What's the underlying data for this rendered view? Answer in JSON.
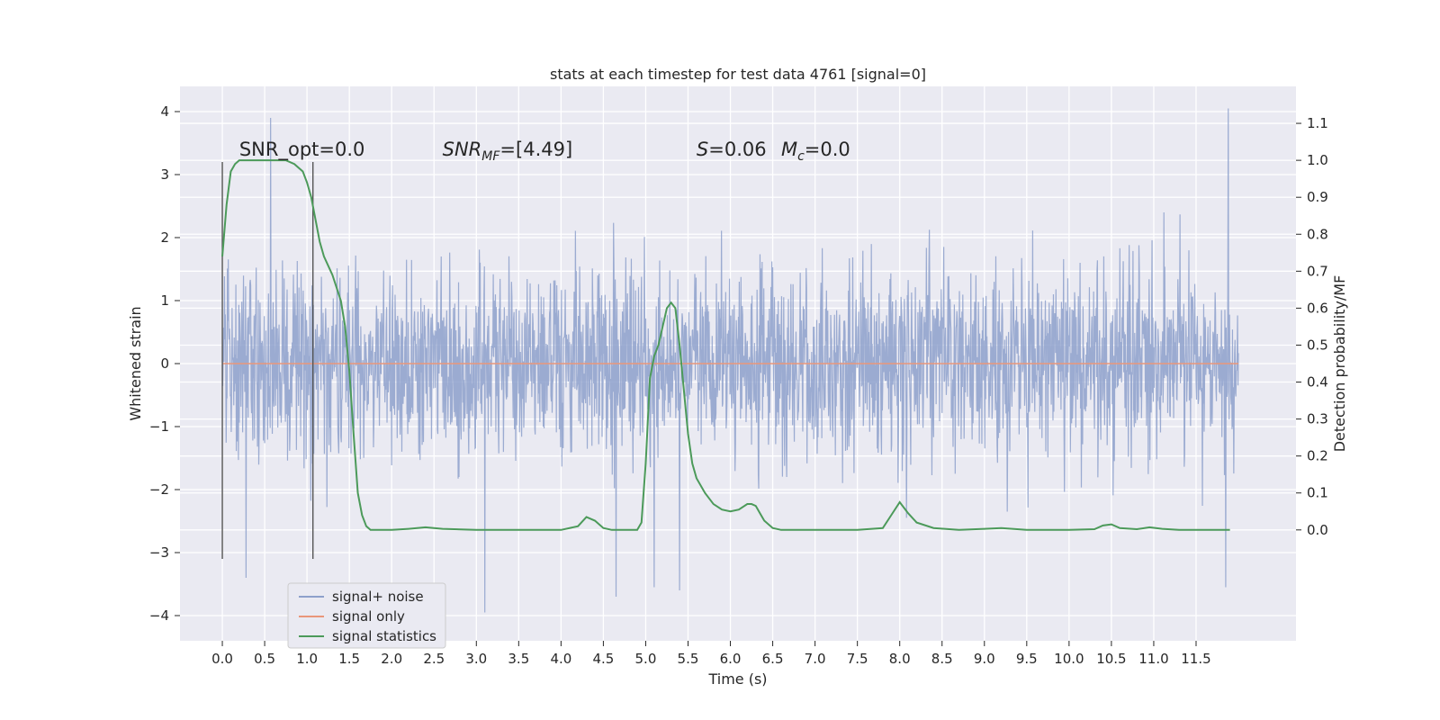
{
  "chart_data": {
    "type": "line",
    "title": "stats at each timestep for test data 4761 [signal=0]",
    "xlabel": "Time (s)",
    "ylabel": "Whitened strain",
    "y2label": "Detection probability/MF",
    "xlim": [
      -0.5,
      12.68
    ],
    "ylim": [
      -4.4,
      4.4
    ],
    "y2lim": [
      -0.3,
      1.2
    ],
    "x_ticks": [
      0.0,
      0.5,
      1.0,
      1.5,
      2.0,
      2.5,
      3.0,
      3.5,
      4.0,
      4.5,
      5.0,
      5.5,
      6.0,
      6.5,
      7.0,
      7.5,
      8.0,
      8.5,
      9.0,
      9.5,
      10.0,
      10.5,
      11.0,
      11.5
    ],
    "x_tick_labels": [
      "0.0",
      "0.5",
      "1.0",
      "1.5",
      "2.0",
      "2.5",
      "3.0",
      "3.5",
      "4.0",
      "4.5",
      "5.0",
      "5.5",
      "6.0",
      "6.5",
      "7.0",
      "7.5",
      "8.0",
      "8.5",
      "9.0",
      "9.5",
      "10.0",
      "10.5",
      "11.0",
      "11.5"
    ],
    "y_ticks": [
      -4,
      -3,
      -2,
      -1,
      0,
      1,
      2,
      3,
      4
    ],
    "y_tick_labels": [
      "−4",
      "−3",
      "−2",
      "−1",
      "0",
      "1",
      "2",
      "3",
      "4"
    ],
    "y2_ticks": [
      0.0,
      0.1,
      0.2,
      0.3,
      0.4,
      0.5,
      0.6,
      0.7,
      0.8,
      0.9,
      1.0,
      1.1
    ],
    "y2_tick_labels": [
      "0.0",
      "0.1",
      "0.2",
      "0.3",
      "0.4",
      "0.5",
      "0.6",
      "0.7",
      "0.8",
      "0.9",
      "1.0",
      "1.1"
    ],
    "grid": true,
    "legend_position": "lower-left",
    "colors": {
      "noise": "#8da0cb",
      "signal": "#e9967a",
      "stats": "#4c9a5a",
      "marker": "#555555",
      "background": "#eaeaf2"
    },
    "series": [
      {
        "name": "signal+ noise",
        "axis": "left",
        "description_range": [
          -3.95,
          4.05
        ],
        "x_range": [
          0.0,
          12.0
        ],
        "peaks": [
          {
            "x": 0.57,
            "y": 3.9
          },
          {
            "x": 11.88,
            "y": 4.05
          },
          {
            "x": 3.1,
            "y": -3.95
          },
          {
            "x": 11.85,
            "y": -3.55
          },
          {
            "x": 0.28,
            "y": -3.4
          },
          {
            "x": 4.65,
            "y": -3.7
          },
          {
            "x": 5.1,
            "y": -3.55
          },
          {
            "x": 5.4,
            "y": -3.6
          }
        ]
      },
      {
        "name": "signal only",
        "axis": "left",
        "x": [
          0.0,
          12.0
        ],
        "y": [
          0.0,
          0.0
        ]
      },
      {
        "name": "signal statistics",
        "axis": "right",
        "x": [
          0.0,
          0.05,
          0.1,
          0.15,
          0.2,
          0.3,
          0.45,
          0.6,
          0.75,
          0.85,
          0.95,
          1.0,
          1.05,
          1.1,
          1.15,
          1.2,
          1.3,
          1.4,
          1.45,
          1.5,
          1.55,
          1.6,
          1.65,
          1.7,
          1.75,
          1.8,
          1.9,
          2.0,
          2.2,
          2.4,
          2.6,
          3.0,
          3.5,
          4.0,
          4.2,
          4.3,
          4.4,
          4.5,
          4.6,
          4.7,
          4.8,
          4.9,
          4.95,
          5.0,
          5.05,
          5.1,
          5.15,
          5.2,
          5.25,
          5.3,
          5.35,
          5.4,
          5.45,
          5.5,
          5.55,
          5.6,
          5.7,
          5.8,
          5.9,
          6.0,
          6.1,
          6.2,
          6.25,
          6.3,
          6.35,
          6.4,
          6.5,
          6.6,
          6.8,
          7.0,
          7.5,
          7.8,
          7.9,
          8.0,
          8.1,
          8.2,
          8.4,
          8.7,
          9.0,
          9.2,
          9.5,
          10.0,
          10.3,
          10.4,
          10.5,
          10.6,
          10.8,
          10.95,
          11.1,
          11.3,
          11.6,
          11.9
        ],
        "y": [
          0.74,
          0.88,
          0.97,
          0.99,
          1.0,
          1.0,
          1.0,
          1.0,
          1.0,
          0.99,
          0.97,
          0.94,
          0.9,
          0.84,
          0.78,
          0.74,
          0.69,
          0.62,
          0.55,
          0.43,
          0.26,
          0.1,
          0.04,
          0.01,
          0.0,
          0.0,
          0.0,
          0.0,
          0.003,
          0.007,
          0.003,
          0.0,
          0.0,
          0.0,
          0.01,
          0.035,
          0.025,
          0.005,
          0.0,
          0.0,
          0.0,
          0.0,
          0.02,
          0.18,
          0.41,
          0.47,
          0.5,
          0.55,
          0.6,
          0.615,
          0.6,
          0.5,
          0.38,
          0.26,
          0.18,
          0.14,
          0.1,
          0.07,
          0.055,
          0.05,
          0.055,
          0.07,
          0.07,
          0.065,
          0.045,
          0.025,
          0.005,
          0.0,
          0.0,
          0.0,
          0.0,
          0.005,
          0.04,
          0.075,
          0.045,
          0.02,
          0.005,
          0.0,
          0.003,
          0.005,
          0.0,
          0.0,
          0.002,
          0.012,
          0.015,
          0.005,
          0.002,
          0.007,
          0.003,
          0.0,
          0.0,
          0.0
        ]
      }
    ],
    "vlines": [
      0.0,
      1.07
    ],
    "vline_extent": [
      -3.1,
      3.2
    ],
    "annotations": [
      {
        "text": "SNR_opt=0.0",
        "x": 0.2,
        "y": 3.3
      },
      {
        "text_parts": [
          "SNR",
          "MF",
          "=[4.49]"
        ],
        "x": 2.6,
        "y": 3.3
      },
      {
        "text_parts": [
          "S",
          "=0.06"
        ],
        "x": 5.6,
        "y": 3.3
      },
      {
        "text_parts": [
          "M",
          "c",
          "=0.0"
        ],
        "x": 6.6,
        "y": 3.3
      }
    ]
  }
}
